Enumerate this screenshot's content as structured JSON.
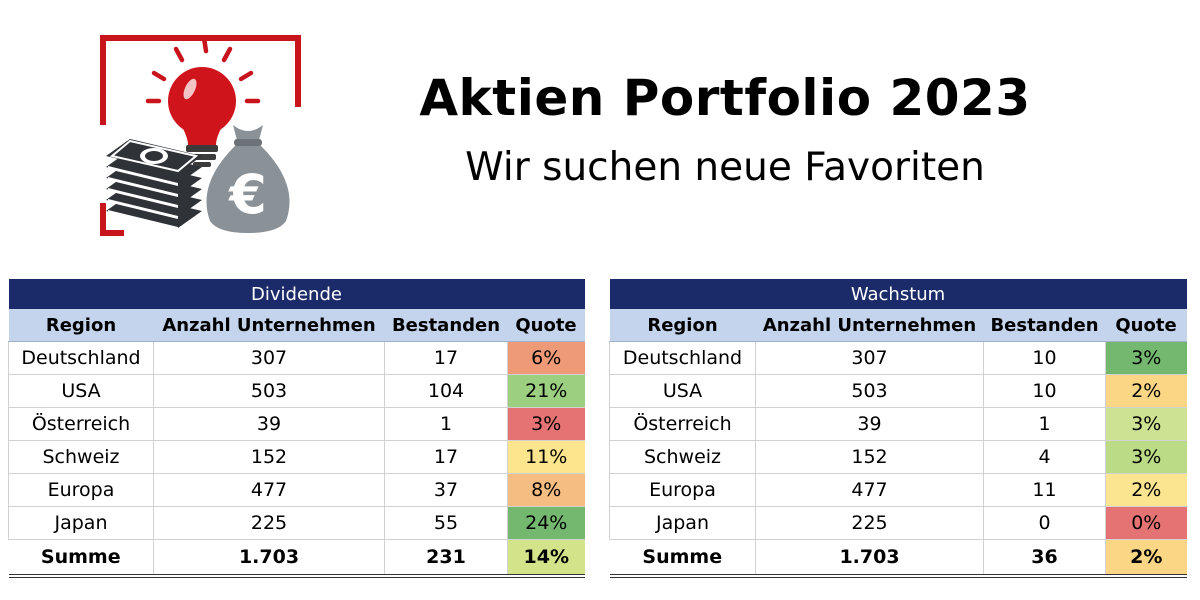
{
  "header": {
    "title": "Aktien Portfolio 2023",
    "subtitle": "Wir suchen neue Favoriten"
  },
  "colors": {
    "header_navy": "#1b2b6a",
    "column_head": "#c4d4ec",
    "accent_red": "#c8141c"
  },
  "tables": {
    "dividende": {
      "title": "Dividende",
      "columns": [
        "Region",
        "Anzahl Unternehmen",
        "Bestanden",
        "Quote"
      ],
      "rows": [
        {
          "region": "Deutschland",
          "anzahl": "307",
          "bestanden": "17",
          "quote": "6%",
          "color": "#ee9a77"
        },
        {
          "region": "USA",
          "anzahl": "503",
          "bestanden": "104",
          "quote": "21%",
          "color": "#9dcf80"
        },
        {
          "region": "Österreich",
          "anzahl": "39",
          "bestanden": "1",
          "quote": "3%",
          "color": "#e57373"
        },
        {
          "region": "Schweiz",
          "anzahl": "152",
          "bestanden": "17",
          "quote": "11%",
          "color": "#fce58c"
        },
        {
          "region": "Europa",
          "anzahl": "477",
          "bestanden": "37",
          "quote": "8%",
          "color": "#f5bd82"
        },
        {
          "region": "Japan",
          "anzahl": "225",
          "bestanden": "55",
          "quote": "24%",
          "color": "#74b86f"
        }
      ],
      "summe": {
        "region": "Summe",
        "anzahl": "1.703",
        "bestanden": "231",
        "quote": "14%",
        "color": "#d2e38a"
      }
    },
    "wachstum": {
      "title": "Wachstum",
      "columns": [
        "Region",
        "Anzahl Unternehmen",
        "Bestanden",
        "Quote"
      ],
      "rows": [
        {
          "region": "Deutschland",
          "anzahl": "307",
          "bestanden": "10",
          "quote": "3%",
          "color": "#74b86f"
        },
        {
          "region": "USA",
          "anzahl": "503",
          "bestanden": "10",
          "quote": "2%",
          "color": "#fbd685"
        },
        {
          "region": "Österreich",
          "anzahl": "39",
          "bestanden": "1",
          "quote": "3%",
          "color": "#cde292"
        },
        {
          "region": "Schweiz",
          "anzahl": "152",
          "bestanden": "4",
          "quote": "3%",
          "color": "#bcdb86"
        },
        {
          "region": "Europa",
          "anzahl": "477",
          "bestanden": "11",
          "quote": "2%",
          "color": "#fbe590"
        },
        {
          "region": "Japan",
          "anzahl": "225",
          "bestanden": "0",
          "quote": "0%",
          "color": "#e57373"
        }
      ],
      "summe": {
        "region": "Summe",
        "anzahl": "1.703",
        "bestanden": "36",
        "quote": "2%",
        "color": "#fbd685"
      }
    }
  }
}
